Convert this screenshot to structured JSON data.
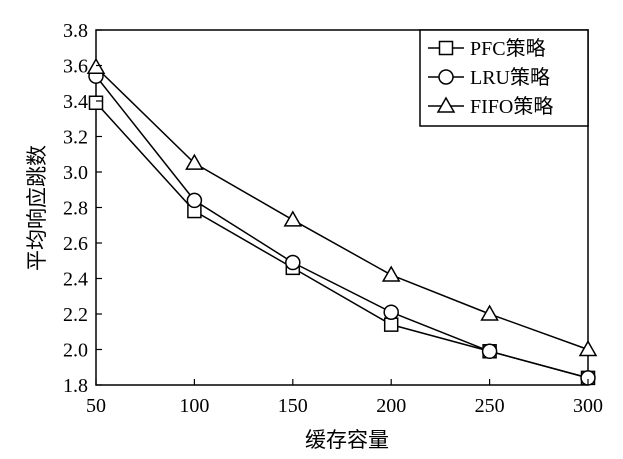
{
  "chart_data": {
    "type": "line",
    "title": "",
    "xlabel": "缓存容量",
    "ylabel": "平均响应跳数",
    "x": [
      50,
      100,
      150,
      200,
      250,
      300
    ],
    "xlim": [
      50,
      300
    ],
    "ylim": [
      1.8,
      3.8
    ],
    "x_ticks": [
      "50",
      "100",
      "150",
      "200",
      "250",
      "300"
    ],
    "y_ticks": [
      "1.8",
      "2.0",
      "2.2",
      "2.4",
      "2.6",
      "2.8",
      "3.0",
      "3.2",
      "3.4",
      "3.6",
      "3.8"
    ],
    "grid": false,
    "legend_position": "top-right",
    "series": [
      {
        "name": "PFC策略",
        "marker": "square",
        "values": [
          3.39,
          2.78,
          2.46,
          2.14,
          1.99,
          1.84
        ]
      },
      {
        "name": "LRU策略",
        "marker": "circle",
        "values": [
          3.54,
          2.84,
          2.49,
          2.21,
          1.99,
          1.84
        ]
      },
      {
        "name": "FIFO策略",
        "marker": "triangle",
        "values": [
          3.59,
          3.05,
          2.73,
          2.42,
          2.2,
          2.0
        ]
      }
    ]
  }
}
